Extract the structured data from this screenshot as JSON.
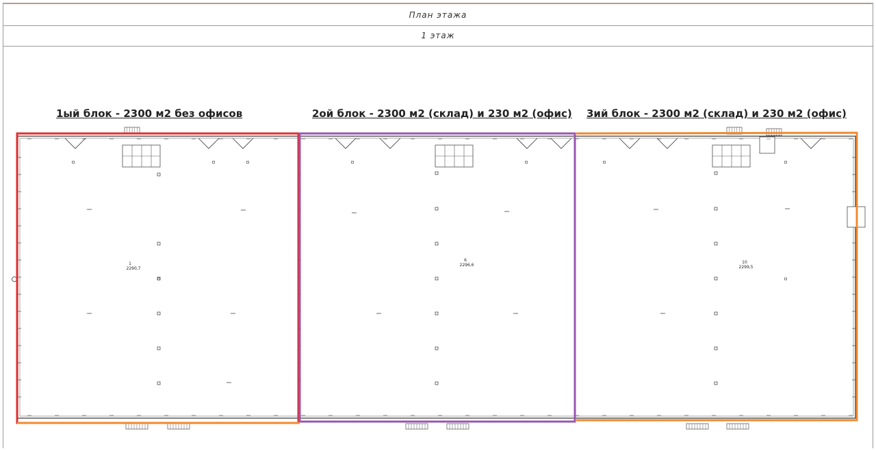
{
  "header": {
    "title": "План этажа",
    "floor": "1 этаж"
  },
  "blocks": [
    {
      "title": "1ый блок - 2300 м2 без офисов",
      "room_no": "1",
      "area": "2290,7",
      "outline_color": "#e03030"
    },
    {
      "title": "2ой блок - 2300 м2 (склад) и 230 м2 (офис)",
      "room_no": "6",
      "area": "2296,6",
      "outline_color": "#9a55b0"
    },
    {
      "title": "3ий блок - 2300 м2 (склад) и 230 м2 (офис)",
      "room_no": "10",
      "area": "2299,5",
      "outline_color": "#f08a30"
    }
  ],
  "colors": {
    "border": "#9a9a9a",
    "plan_lines": "#333333"
  }
}
